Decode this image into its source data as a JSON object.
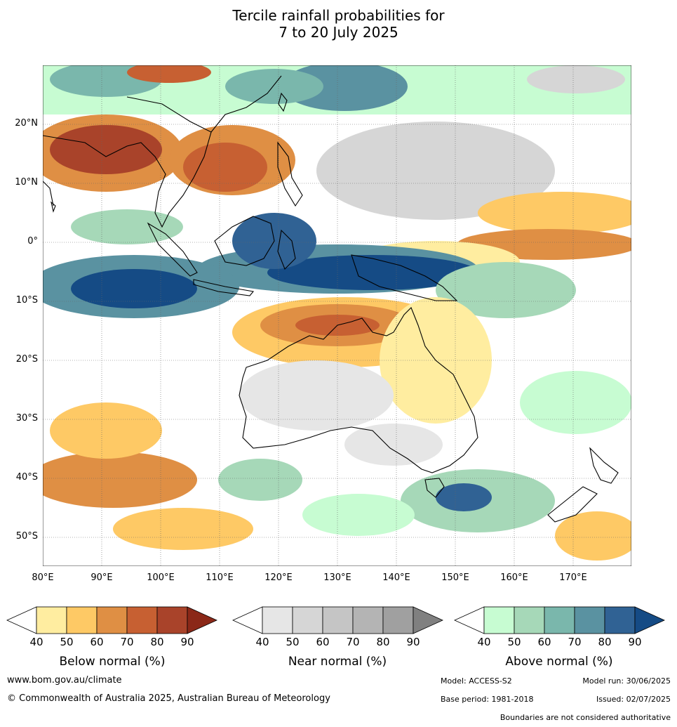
{
  "title": {
    "line1": "Tercile rainfall probabilities for",
    "line2": "7 to 20 July 2025"
  },
  "map": {
    "lat_labels": [
      "20°N",
      "10°N",
      "0°",
      "10°S",
      "20°S",
      "30°S",
      "40°S",
      "50°S"
    ],
    "lon_labels": [
      "80°E",
      "90°E",
      "100°E",
      "110°E",
      "120°E",
      "130°E",
      "140°E",
      "150°E",
      "160°E",
      "170°E"
    ]
  },
  "legends": [
    {
      "title": "Below normal (%)",
      "ticks": [
        "40",
        "50",
        "60",
        "70",
        "80",
        "90"
      ],
      "colors": [
        "#ffeda0",
        "#fec965",
        "#df8f44",
        "#c76032",
        "#a9432a",
        "#8b2818"
      ]
    },
    {
      "title": "Near normal (%)",
      "ticks": [
        "40",
        "50",
        "60",
        "70",
        "80",
        "90"
      ],
      "colors": [
        "#e6e6e6",
        "#d6d6d6",
        "#c5c5c5",
        "#b4b4b4",
        "#a0a0a0",
        "#808080"
      ]
    },
    {
      "title": "Above normal (%)",
      "ticks": [
        "40",
        "50",
        "60",
        "70",
        "80",
        "90"
      ],
      "colors": [
        "#c7fcd2",
        "#a6d8b8",
        "#7ab7ac",
        "#5a92a1",
        "#306294",
        "#154b85"
      ]
    }
  ],
  "footer": {
    "website": "www.bom.gov.au/climate",
    "copyright": "© Commonwealth of Australia 2025, Australian Bureau of Meteorology",
    "model": "Model: ACCESS-S2",
    "model_run": "Model run: 30/06/2025",
    "base_period": "Base period: 1981-2018",
    "issued": "Issued: 02/07/2025",
    "boundaries": "Boundaries are not considered authoritative"
  }
}
